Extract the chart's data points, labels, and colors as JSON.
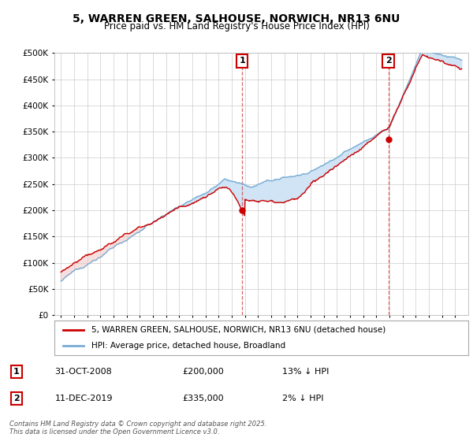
{
  "title": "5, WARREN GREEN, SALHOUSE, NORWICH, NR13 6NU",
  "subtitle": "Price paid vs. HM Land Registry's House Price Index (HPI)",
  "ytick_values": [
    0,
    50000,
    100000,
    150000,
    200000,
    250000,
    300000,
    350000,
    400000,
    450000,
    500000
  ],
  "ylim": [
    0,
    500000
  ],
  "legend_property_label": "5, WARREN GREEN, SALHOUSE, NORWICH, NR13 6NU (detached house)",
  "legend_hpi_label": "HPI: Average price, detached house, Broadland",
  "property_color": "#cc0000",
  "hpi_color": "#7aadd4",
  "fill_color": "#d0e4f5",
  "annotation1_label": "1",
  "annotation1_date": "31-OCT-2008",
  "annotation1_price": "£200,000",
  "annotation1_hpi": "13% ↓ HPI",
  "annotation2_label": "2",
  "annotation2_date": "11-DEC-2019",
  "annotation2_price": "£335,000",
  "annotation2_hpi": "2% ↓ HPI",
  "footnote": "Contains HM Land Registry data © Crown copyright and database right 2025.\nThis data is licensed under the Open Government Licence v3.0.",
  "background_color": "#ffffff",
  "grid_color": "#cccccc",
  "purchase1_year": 2008.79,
  "purchase1_price": 200000,
  "purchase2_year": 2019.92,
  "purchase2_price": 335000
}
